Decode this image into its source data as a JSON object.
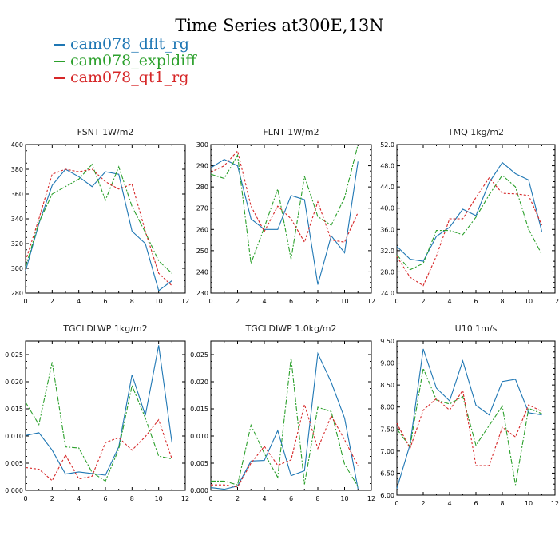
{
  "title": "Time Series at300E,13N",
  "legend": [
    {
      "label": "cam078_dflt_rg",
      "color": "#1f77b4"
    },
    {
      "label": "cam078_expldiff",
      "color": "#2ca02c"
    },
    {
      "label": "cam078_qt1_rg",
      "color": "#d62728"
    }
  ],
  "chart_data": [
    {
      "type": "line",
      "title": "FSNT   1W/m2",
      "x": [
        0,
        1,
        2,
        3,
        4,
        5,
        6,
        7,
        8,
        9,
        10,
        11
      ],
      "xlim": [
        0,
        12
      ],
      "xticks": [
        "0",
        "2",
        "4",
        "6",
        "8",
        "10",
        "12"
      ],
      "ylim": [
        280,
        400
      ],
      "yticks": [
        "280",
        "300",
        "320",
        "340",
        "360",
        "380",
        "400"
      ],
      "series": [
        {
          "name": "cam078_dflt_rg",
          "values": [
            298,
            336,
            367,
            380,
            374,
            366,
            378,
            376,
            330,
            320,
            282,
            290
          ]
        },
        {
          "name": "cam078_expldiff",
          "values": [
            301,
            337,
            360,
            366,
            372,
            384,
            355,
            382,
            350,
            329,
            306,
            296
          ]
        },
        {
          "name": "cam078_qt1_rg",
          "values": [
            306,
            340,
            376,
            380,
            378,
            380,
            370,
            364,
            368,
            330,
            296,
            286
          ]
        }
      ]
    },
    {
      "type": "line",
      "title": "FLNT   1W/m2",
      "x": [
        0,
        1,
        2,
        3,
        4,
        5,
        6,
        7,
        8,
        9,
        10,
        11
      ],
      "xlim": [
        0,
        12
      ],
      "xticks": [
        "0",
        "2",
        "4",
        "6",
        "8",
        "10",
        "12"
      ],
      "ylim": [
        230,
        300
      ],
      "yticks": [
        "230",
        "240",
        "250",
        "260",
        "270",
        "280",
        "290",
        "300"
      ],
      "series": [
        {
          "name": "cam078_dflt_rg",
          "values": [
            289,
            293,
            290,
            265,
            260,
            260,
            276,
            274,
            234,
            257,
            249,
            292
          ]
        },
        {
          "name": "cam078_expldiff",
          "values": [
            286,
            284,
            295,
            244,
            261,
            279,
            246,
            285,
            266,
            262,
            275,
            300
          ]
        },
        {
          "name": "cam078_qt1_rg",
          "values": [
            287,
            290,
            297,
            271,
            259,
            271,
            265,
            254,
            273,
            255,
            254,
            268
          ]
        }
      ]
    },
    {
      "type": "line",
      "title": "TMQ   1kg/m2",
      "x": [
        0,
        1,
        2,
        3,
        4,
        5,
        6,
        7,
        8,
        9,
        10,
        11
      ],
      "xlim": [
        0,
        12
      ],
      "xticks": [
        "0",
        "2",
        "4",
        "6",
        "8",
        "10",
        "12"
      ],
      "ylim": [
        24,
        52
      ],
      "yticks": [
        "24.0",
        "28.0",
        "32.0",
        "36.0",
        "40.0",
        "44.0",
        "48.0",
        "52.0"
      ],
      "series": [
        {
          "name": "cam078_dflt_rg",
          "values": [
            32.8,
            30.4,
            30.0,
            34.7,
            36.4,
            39.8,
            38.6,
            44.8,
            48.6,
            46.5,
            45.3,
            35.6
          ]
        },
        {
          "name": "cam078_expldiff",
          "values": [
            31.2,
            28.4,
            29.6,
            35.8,
            35.8,
            35.0,
            38.3,
            42.5,
            46.2,
            44.0,
            36.0,
            31.3
          ]
        },
        {
          "name": "cam078_qt1_rg",
          "values": [
            30.9,
            27.0,
            25.4,
            31.0,
            38.0,
            38.0,
            42.0,
            45.7,
            42.8,
            42.7,
            42.4,
            36.8
          ]
        }
      ]
    },
    {
      "type": "line",
      "title": "TGCLDLWP   1kg/m2",
      "x": [
        0,
        1,
        2,
        3,
        4,
        5,
        6,
        7,
        8,
        9,
        10,
        11
      ],
      "xlim": [
        0,
        12
      ],
      "xticks": [
        "0",
        "2",
        "4",
        "6",
        "8",
        "10",
        "12"
      ],
      "ylim": [
        0,
        0.0275
      ],
      "yticks": [
        "0.000",
        "0.005",
        "0.010",
        "0.015",
        "0.020",
        "0.025"
      ],
      "series": [
        {
          "name": "cam078_dflt_rg",
          "values": [
            0.0101,
            0.0106,
            0.0074,
            0.003,
            0.0034,
            0.0031,
            0.0028,
            0.008,
            0.0213,
            0.0138,
            0.0267,
            0.0088
          ]
        },
        {
          "name": "cam078_expldiff",
          "values": [
            0.0162,
            0.0121,
            0.0236,
            0.008,
            0.0078,
            0.0033,
            0.0017,
            0.0076,
            0.0193,
            0.0133,
            0.0063,
            0.0058
          ]
        },
        {
          "name": "cam078_qt1_rg",
          "values": [
            0.0042,
            0.0039,
            0.0018,
            0.0065,
            0.0021,
            0.0026,
            0.0088,
            0.0097,
            0.0074,
            0.0099,
            0.013,
            0.0058
          ]
        }
      ]
    },
    {
      "type": "line",
      "title": "TGCLDIWP   1.0kg/m2",
      "x": [
        0,
        1,
        2,
        3,
        4,
        5,
        6,
        7,
        8,
        9,
        10,
        11
      ],
      "xlim": [
        0,
        12
      ],
      "xticks": [
        "0",
        "2",
        "4",
        "6",
        "8",
        "10",
        "12"
      ],
      "ylim": [
        0,
        0.0275
      ],
      "yticks": [
        "0.000",
        "0.005",
        "0.010",
        "0.015",
        "0.020",
        "0.025"
      ],
      "series": [
        {
          "name": "cam078_dflt_rg",
          "values": [
            0.0005,
            0.0002,
            0.0008,
            0.0054,
            0.0055,
            0.011,
            0.0027,
            0.0036,
            0.0252,
            0.0199,
            0.0133,
            0.0003
          ]
        },
        {
          "name": "cam078_expldiff",
          "values": [
            0.0017,
            0.0017,
            0.001,
            0.012,
            0.0068,
            0.0024,
            0.0244,
            0.0011,
            0.0153,
            0.0145,
            0.0048,
            0.0007
          ]
        },
        {
          "name": "cam078_qt1_rg",
          "values": [
            0.001,
            0.001,
            0.0006,
            0.005,
            0.0081,
            0.0046,
            0.0056,
            0.0158,
            0.0077,
            0.0137,
            0.0093,
            0.0045
          ]
        }
      ]
    },
    {
      "type": "line",
      "title": "U10   1m/s",
      "x": [
        0,
        1,
        2,
        3,
        4,
        5,
        6,
        7,
        8,
        9,
        10,
        11
      ],
      "xlim": [
        0,
        12
      ],
      "xticks": [
        "0",
        "2",
        "4",
        "6",
        "8",
        "10",
        "12"
      ],
      "ylim": [
        6.0,
        9.5
      ],
      "yticks": [
        "6.00",
        "6.50",
        "7.00",
        "7.50",
        "8.00",
        "8.50",
        "9.00",
        "9.50"
      ],
      "series": [
        {
          "name": "cam078_dflt_rg",
          "values": [
            6.15,
            7.15,
            9.32,
            8.43,
            8.14,
            9.05,
            8.04,
            7.82,
            8.58,
            8.63,
            7.87,
            7.82
          ]
        },
        {
          "name": "cam078_expldiff",
          "values": [
            7.5,
            7.1,
            8.88,
            8.16,
            8.07,
            8.24,
            7.13,
            7.58,
            8.02,
            6.23,
            7.97,
            7.85
          ]
        },
        {
          "name": "cam078_qt1_rg",
          "values": [
            7.63,
            7.06,
            7.93,
            8.19,
            7.93,
            8.38,
            6.67,
            6.67,
            7.54,
            7.32,
            8.05,
            7.9
          ]
        }
      ]
    }
  ]
}
